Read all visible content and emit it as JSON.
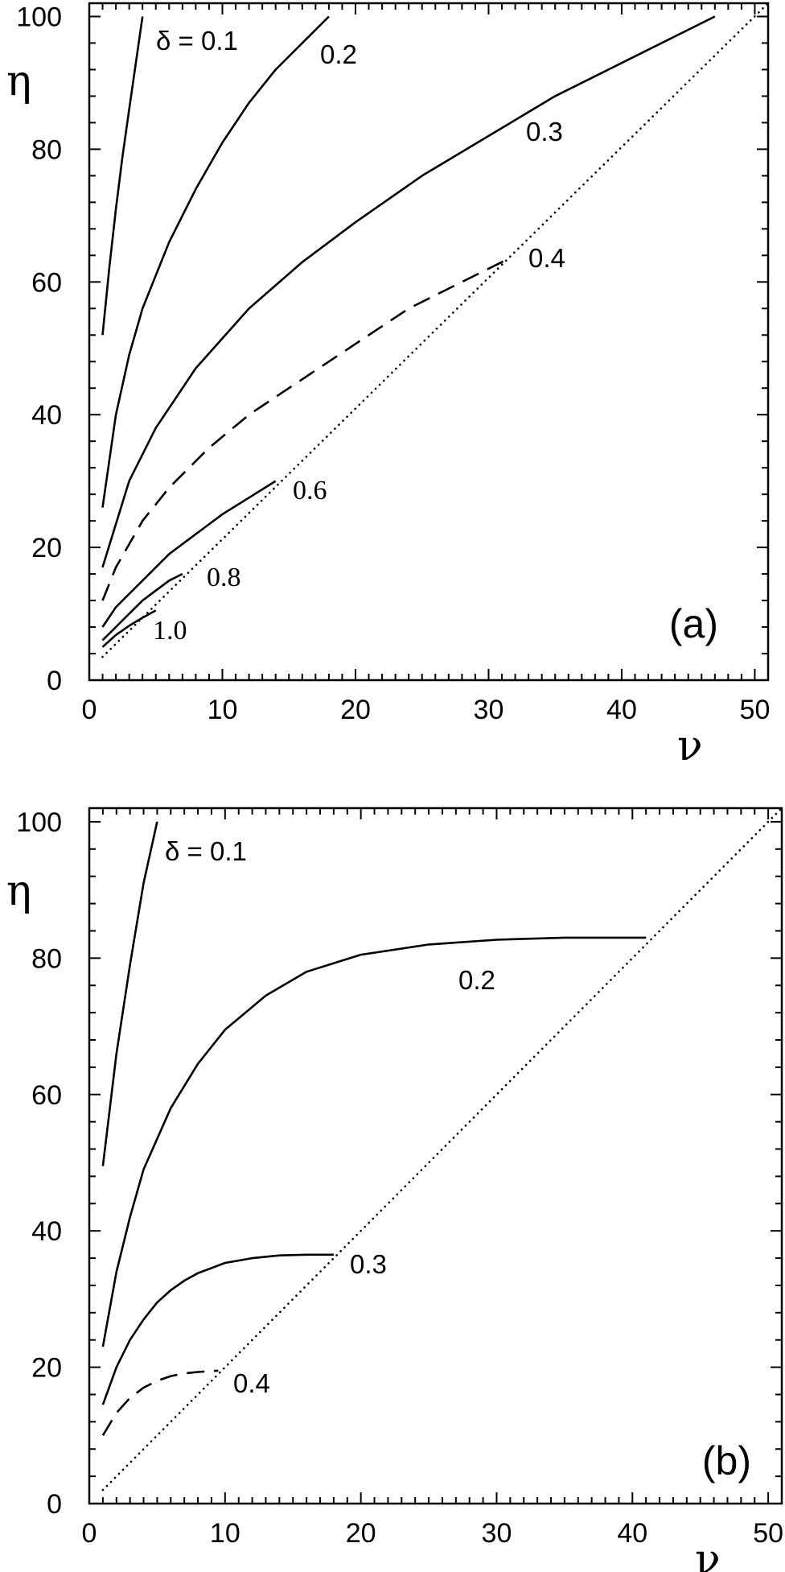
{
  "chart_data": [
    {
      "type": "line",
      "panel_tag": "(a)",
      "xlabel": "ν",
      "ylabel": "η",
      "xlim": [
        0,
        51
      ],
      "ylim": [
        0,
        102
      ],
      "x_ticks": [
        0,
        10,
        20,
        30,
        40,
        50
      ],
      "y_ticks": [
        0,
        20,
        40,
        60,
        80,
        100
      ],
      "grid": false,
      "series": [
        {
          "name": "δ = 0.1",
          "label": "δ = 0.1",
          "style": "solid",
          "x": [
            1,
            1.5,
            2,
            2.5,
            3,
            3.5,
            4
          ],
          "y": [
            52,
            62,
            71,
            79,
            86,
            93,
            100
          ]
        },
        {
          "name": "0.2",
          "label": "0.2",
          "style": "solid",
          "x": [
            1,
            2,
            3,
            4,
            6,
            8,
            10,
            12,
            14,
            16,
            18
          ],
          "y": [
            26,
            40,
            49,
            56,
            66,
            74,
            81,
            87,
            92,
            96,
            100
          ]
        },
        {
          "name": "0.3",
          "label": "0.3",
          "style": "solid",
          "x": [
            1,
            3,
            5,
            8,
            12,
            16,
            20,
            25,
            30,
            35,
            40,
            47
          ],
          "y": [
            17,
            30,
            38,
            47,
            56,
            63,
            69,
            76,
            82,
            88,
            93,
            100
          ]
        },
        {
          "name": "0.4",
          "label": "0.4",
          "style": "dashed",
          "x": [
            1,
            2,
            4,
            6,
            9,
            12,
            15,
            18,
            21,
            24,
            27,
            30,
            31.5
          ],
          "y": [
            12,
            17,
            24,
            29,
            35,
            40,
            44,
            48,
            52,
            56,
            59,
            62,
            63.5
          ]
        },
        {
          "name": "0.6",
          "label": "0.6",
          "style": "solid",
          "x": [
            1,
            2,
            4,
            6,
            8,
            10,
            12,
            14
          ],
          "y": [
            8,
            11,
            15,
            19,
            22,
            25,
            27.5,
            30
          ]
        },
        {
          "name": "0.8",
          "label": "0.8",
          "style": "solid",
          "x": [
            1,
            2,
            3,
            4,
            5,
            6,
            7
          ],
          "y": [
            6,
            8,
            10,
            12,
            13.5,
            15,
            16
          ]
        },
        {
          "name": "1.0",
          "label": "1.0",
          "style": "solid",
          "x": [
            1,
            2,
            3,
            4,
            5
          ],
          "y": [
            5,
            6.8,
            8.2,
            9.4,
            10.5
          ]
        },
        {
          "name": "",
          "label": "",
          "style": "dotted",
          "x": [
            1,
            51
          ],
          "y": [
            3.5,
            102
          ]
        }
      ]
    },
    {
      "type": "line",
      "panel_tag": "(b)",
      "xlabel": "ν",
      "ylabel": "η",
      "xlim": [
        0,
        51
      ],
      "ylim": [
        0,
        102
      ],
      "x_ticks": [
        0,
        10,
        20,
        30,
        40,
        50
      ],
      "y_ticks": [
        0,
        20,
        40,
        60,
        80,
        100
      ],
      "grid": false,
      "series": [
        {
          "name": "δ = 0.1",
          "label": "δ = 0.1",
          "style": "solid",
          "x": [
            1,
            2,
            3,
            4,
            5
          ],
          "y": [
            49.5,
            66,
            79,
            91,
            100
          ]
        },
        {
          "name": "0.2",
          "label": "0.2",
          "style": "solid",
          "x": [
            1,
            2,
            3,
            4,
            6,
            8,
            10,
            13,
            16,
            20,
            25,
            30,
            35,
            41
          ],
          "y": [
            23,
            34,
            42,
            49,
            58,
            64.5,
            69.5,
            74.5,
            78,
            80.5,
            82,
            82.7,
            83,
            83
          ]
        },
        {
          "name": "0.3",
          "label": "0.3",
          "style": "solid",
          "x": [
            1,
            2,
            3,
            4,
            5,
            6,
            7,
            8,
            10,
            12,
            14,
            16,
            18
          ],
          "y": [
            14.5,
            20,
            24,
            27,
            29.5,
            31.3,
            32.7,
            33.8,
            35.3,
            36,
            36.4,
            36.5,
            36.5
          ]
        },
        {
          "name": "0.4",
          "label": "0.4",
          "style": "dashed",
          "x": [
            1,
            2,
            3,
            4,
            5,
            6,
            7,
            8,
            9.5
          ],
          "y": [
            10,
            13.3,
            15.5,
            17,
            18,
            18.7,
            19.1,
            19.3,
            19.5
          ]
        },
        {
          "name": "",
          "label": "",
          "style": "dotted",
          "x": [
            1,
            51
          ],
          "y": [
            2,
            102
          ]
        }
      ]
    }
  ]
}
